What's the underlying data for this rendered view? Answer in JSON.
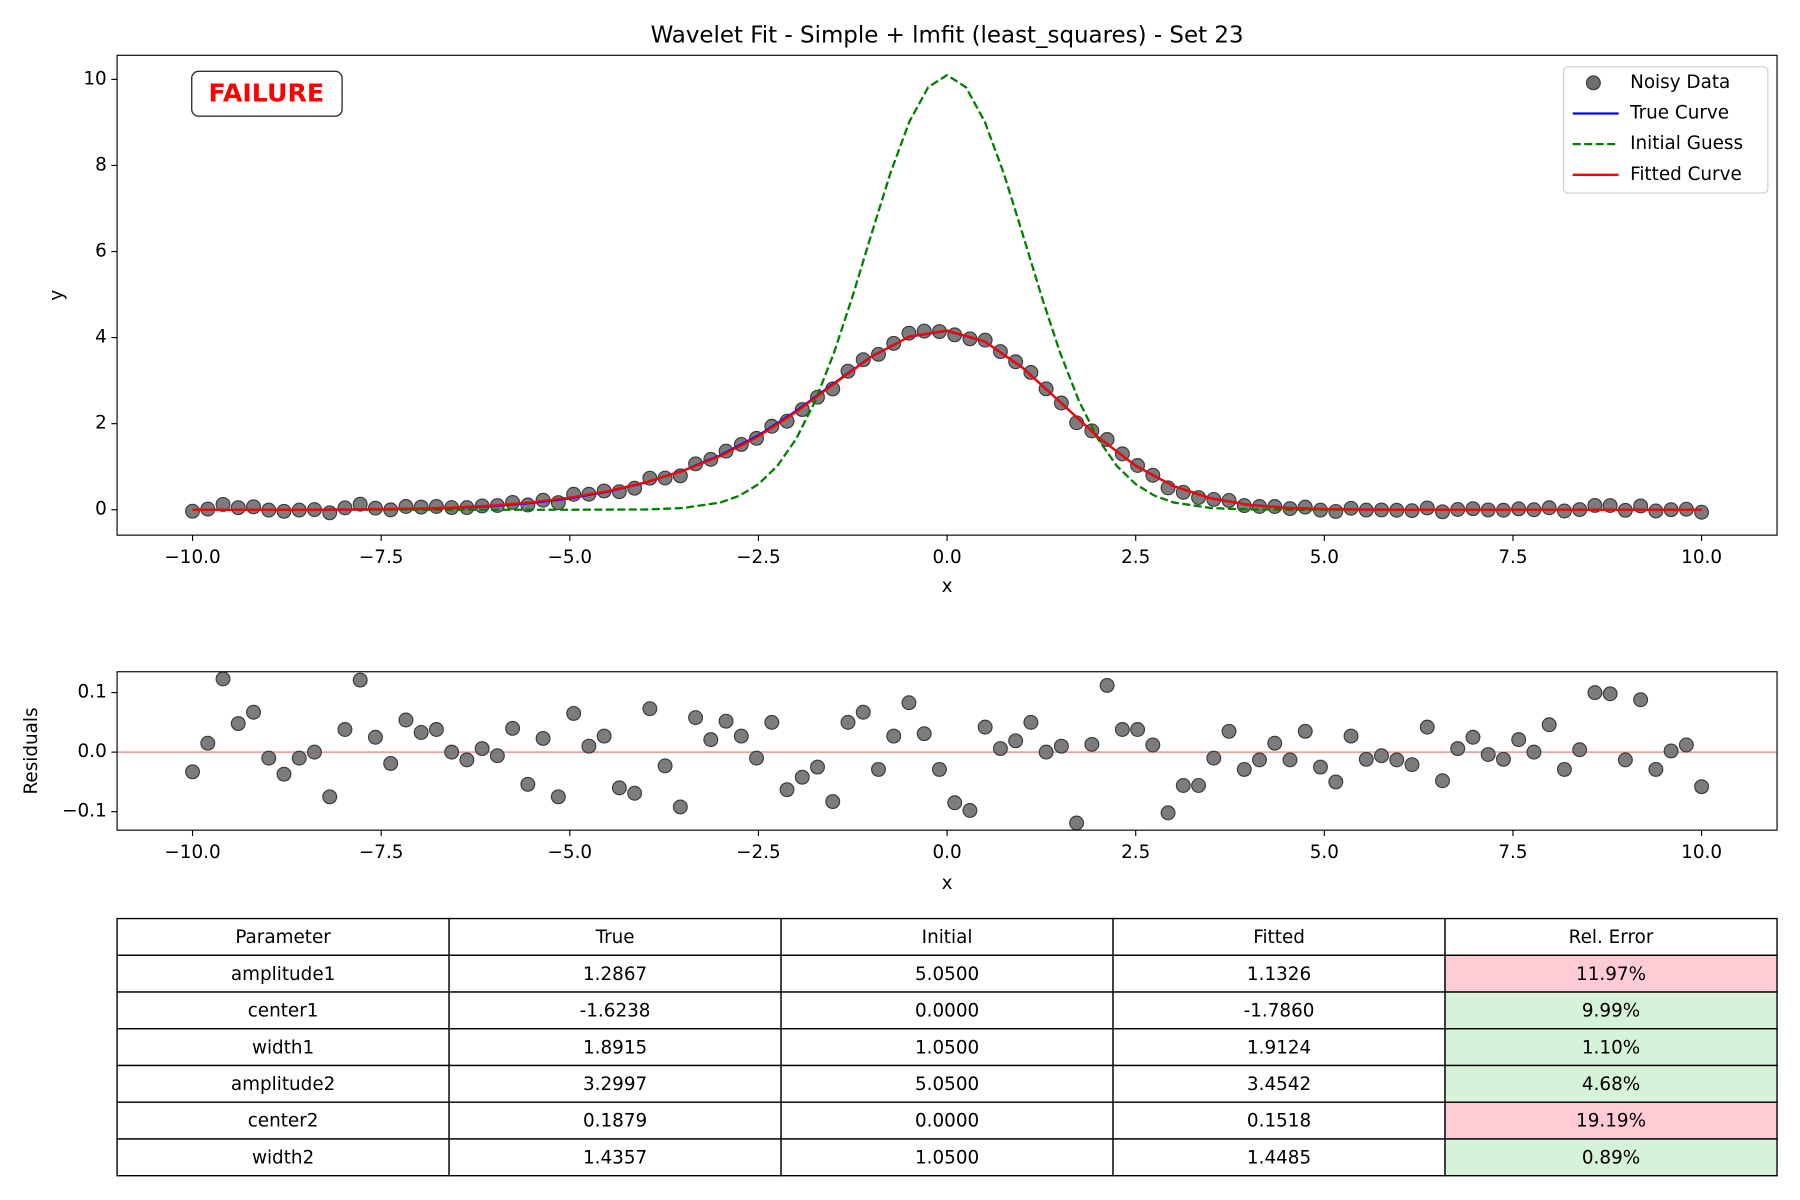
{
  "chart_data": [
    {
      "type": "line",
      "title": "Wavelet Fit - Simple + lmfit (least_squares) - Set 23",
      "xlabel": "x",
      "ylabel": "y",
      "xlim": [
        -11,
        11
      ],
      "ylim": [
        -0.59,
        10.56
      ],
      "xticks": [
        {
          "value": -10,
          "label": "−10.0"
        },
        {
          "value": -7.5,
          "label": "−7.5"
        },
        {
          "value": -5,
          "label": "−5.0"
        },
        {
          "value": -2.5,
          "label": "−2.5"
        },
        {
          "value": 0,
          "label": "0.0"
        },
        2.5,
        {
          "value": 5,
          "label": "5.0"
        },
        7.5,
        {
          "value": 10,
          "label": "10.0"
        }
      ],
      "yticks": [
        0,
        2,
        4,
        6,
        8,
        10
      ],
      "annotation": "FAILURE",
      "annotation_color": "#ff0000",
      "legend": "upper right",
      "series": [
        {
          "name": "Noisy Data",
          "style": "markers",
          "color": "#6e6e6e",
          "x": [
            -10,
            -9.798,
            -9.596,
            -9.394,
            -9.192,
            -8.99,
            -8.788,
            -8.586,
            -8.384,
            -8.182,
            -7.98,
            -7.778,
            -7.576,
            -7.374,
            -7.172,
            -6.97,
            -6.768,
            -6.566,
            -6.364,
            -6.162,
            -5.96,
            -5.758,
            -5.556,
            -5.354,
            -5.152,
            -4.949,
            -4.747,
            -4.545,
            -4.343,
            -4.141,
            -3.939,
            -3.737,
            -3.535,
            -3.333,
            -3.131,
            -2.929,
            -2.727,
            -2.525,
            -2.323,
            -2.121,
            -1.919,
            -1.717,
            -1.515,
            -1.313,
            -1.111,
            -0.909,
            -0.707,
            -0.505,
            -0.303,
            -0.101,
            0.101,
            0.303,
            0.505,
            0.707,
            0.909,
            1.111,
            1.313,
            1.515,
            1.717,
            1.919,
            2.121,
            2.323,
            2.525,
            2.727,
            2.929,
            3.131,
            3.333,
            3.535,
            3.737,
            3.939,
            4.141,
            4.343,
            4.545,
            4.747,
            4.949,
            5.152,
            5.354,
            5.556,
            5.758,
            5.96,
            6.162,
            6.364,
            6.566,
            6.768,
            6.97,
            7.172,
            7.374,
            7.576,
            7.778,
            7.98,
            8.182,
            8.384,
            8.586,
            8.788,
            8.99,
            9.192,
            9.394,
            9.596,
            9.798,
            10
          ],
          "values": [
            -0.033,
            0.015,
            0.123,
            0.048,
            0.068,
            -0.009,
            -0.036,
            -0.008,
            0.003,
            -0.071,
            0.044,
            0.129,
            0.037,
            -0.003,
            0.075,
            0.062,
            0.076,
            0.05,
            0.05,
            0.088,
            0.098,
            0.17,
            0.11,
            0.221,
            0.165,
            0.36,
            0.36,
            0.437,
            0.42,
            0.501,
            0.733,
            0.737,
            0.788,
            1.068,
            1.171,
            1.362,
            1.517,
            1.66,
            1.94,
            2.057,
            2.328,
            2.615,
            2.807,
            3.22,
            3.487,
            3.611,
            3.867,
            4.103,
            4.151,
            4.141,
            4.065,
            3.972,
            3.942,
            3.676,
            3.439,
            3.19,
            2.81,
            2.48,
            2.021,
            1.833,
            1.632,
            1.298,
            1.028,
            0.802,
            0.508,
            0.404,
            0.284,
            0.24,
            0.215,
            0.096,
            0.075,
            0.075,
            0.027,
            0.061,
            -0.009,
            -0.039,
            0.034,
            -0.008,
            -0.004,
            -0.012,
            -0.021,
            0.042,
            -0.048,
            0.006,
            0.025,
            -0.004,
            -0.012,
            0.021,
            0,
            0.046,
            -0.029,
            0.004,
            0.1,
            0.098,
            -0.013,
            0.088,
            -0.029,
            0.002,
            0.012,
            -0.058
          ]
        },
        {
          "name": "True Curve",
          "style": "solid",
          "color": "#0000ff",
          "x": [
            -10,
            -9.5,
            -9,
            -8.5,
            -8,
            -7.5,
            -7,
            -6.5,
            -6,
            -5.5,
            -5,
            -4.5,
            -4,
            -3.5,
            -3,
            -2.5,
            -2,
            -1.5,
            -1,
            -0.5,
            0,
            0.5,
            1,
            1.5,
            2,
            2.5,
            3,
            3.5,
            4,
            4.5,
            5,
            5.5,
            6,
            6.5,
            7,
            7.5,
            8,
            8.5,
            9,
            9.5,
            10
          ],
          "values": [
            0,
            0,
            0.001,
            0.002,
            0.004,
            0.01,
            0.023,
            0.046,
            0.089,
            0.159,
            0.266,
            0.421,
            0.631,
            0.909,
            1.268,
            1.728,
            2.294,
            2.937,
            3.562,
            4.02,
            4.162,
            3.908,
            3.303,
            2.502,
            1.693,
            1.022,
            0.55,
            0.263,
            0.113,
            0.043,
            0.015,
            0.005,
            0.001,
            0,
            0,
            0,
            0,
            0,
            0,
            0,
            0
          ]
        },
        {
          "name": "Initial Guess",
          "style": "dashed",
          "color": "#008000",
          "x": [
            -10,
            -5,
            -4,
            -3.5,
            -3,
            -2.75,
            -2.5,
            -2.25,
            -2,
            -1.75,
            -1.5,
            -1.25,
            -1,
            -0.75,
            -0.5,
            -0.25,
            0,
            0.25,
            0.5,
            0.75,
            1,
            1.25,
            1.5,
            1.75,
            2,
            2.25,
            2.5,
            2.75,
            3,
            3.5,
            4,
            5,
            10
          ],
          "values": [
            0,
            0,
            0.007,
            0.039,
            0.17,
            0.327,
            0.594,
            1.017,
            1.646,
            2.519,
            3.64,
            4.972,
            6.417,
            7.825,
            9.017,
            9.818,
            10.1,
            9.818,
            9.017,
            7.825,
            6.417,
            4.972,
            3.64,
            2.519,
            1.646,
            1.017,
            0.594,
            0.327,
            0.17,
            0.039,
            0.007,
            0,
            0
          ]
        },
        {
          "name": "Fitted Curve",
          "style": "solid",
          "color": "#ff0000",
          "x": [
            -10,
            -9.5,
            -9,
            -8.5,
            -8,
            -7.5,
            -7,
            -6.5,
            -6,
            -5.5,
            -5,
            -4.5,
            -4,
            -3.5,
            -3,
            -2.5,
            -2,
            -1.5,
            -1,
            -0.5,
            0,
            0.5,
            1,
            1.5,
            2,
            2.5,
            3,
            3.5,
            4,
            4.5,
            5,
            5.5,
            6,
            6.5,
            7,
            7.5,
            8,
            8.5,
            9,
            9.5,
            10
          ],
          "values": [
            0,
            0,
            0.001,
            0.002,
            0.006,
            0.013,
            0.028,
            0.054,
            0.1,
            0.174,
            0.282,
            0.434,
            0.636,
            0.902,
            1.25,
            1.703,
            2.271,
            2.922,
            3.558,
            4.025,
            4.168,
            3.911,
            3.302,
            2.499,
            1.69,
            1.021,
            0.549,
            0.264,
            0.113,
            0.043,
            0.015,
            0.005,
            0.001,
            0,
            0,
            0,
            0,
            0,
            0,
            0,
            0
          ]
        }
      ]
    },
    {
      "type": "scatter",
      "xlabel": "x",
      "ylabel": "Residuals",
      "xlim": [
        -11,
        11
      ],
      "ylim": [
        -0.131,
        0.135
      ],
      "xticks": [
        {
          "value": -10,
          "label": "−10.0"
        },
        {
          "value": -7.5,
          "label": "−7.5"
        },
        {
          "value": -5,
          "label": "−5.0"
        },
        {
          "value": -2.5,
          "label": "−2.5"
        },
        {
          "value": 0,
          "label": "0.0"
        },
        2.5,
        {
          "value": 5,
          "label": "5.0"
        },
        7.5,
        {
          "value": 10,
          "label": "10.0"
        }
      ],
      "yticks": [
        {
          "value": -0.1,
          "label": "−0.1"
        },
        {
          "value": 0,
          "label": "0.0"
        },
        0.1
      ],
      "hline": {
        "y": 0,
        "color": "#f4a0a0"
      },
      "color": "#6e6e6e",
      "x": [
        -10,
        -9.798,
        -9.596,
        -9.394,
        -9.192,
        -8.99,
        -8.788,
        -8.586,
        -8.384,
        -8.182,
        -7.98,
        -7.778,
        -7.576,
        -7.374,
        -7.172,
        -6.97,
        -6.768,
        -6.566,
        -6.364,
        -6.162,
        -5.96,
        -5.758,
        -5.556,
        -5.354,
        -5.152,
        -4.949,
        -4.747,
        -4.545,
        -4.343,
        -4.141,
        -3.939,
        -3.737,
        -3.535,
        -3.333,
        -3.131,
        -2.929,
        -2.727,
        -2.525,
        -2.323,
        -2.121,
        -1.919,
        -1.717,
        -1.515,
        -1.313,
        -1.111,
        -0.909,
        -0.707,
        -0.505,
        -0.303,
        -0.101,
        0.101,
        0.303,
        0.505,
        0.707,
        0.909,
        1.111,
        1.313,
        1.515,
        1.717,
        1.919,
        2.121,
        2.323,
        2.525,
        2.727,
        2.929,
        3.131,
        3.333,
        3.535,
        3.737,
        3.939,
        4.141,
        4.343,
        4.545,
        4.747,
        4.949,
        5.152,
        5.354,
        5.556,
        5.758,
        5.96,
        6.162,
        6.364,
        6.566,
        6.768,
        6.97,
        7.172,
        7.374,
        7.576,
        7.778,
        7.98,
        8.182,
        8.384,
        8.586,
        8.788,
        8.99,
        9.192,
        9.394,
        9.596,
        9.798,
        10
      ],
      "values": [
        -0.033,
        0.015,
        0.123,
        0.048,
        0.067,
        -0.01,
        -0.037,
        -0.01,
        0,
        -0.075,
        0.038,
        0.121,
        0.025,
        -0.019,
        0.054,
        0.033,
        0.038,
        0,
        -0.013,
        0.006,
        -0.006,
        0.04,
        -0.054,
        0.023,
        -0.075,
        0.065,
        0.01,
        0.027,
        -0.06,
        -0.069,
        0.073,
        -0.023,
        -0.092,
        0.058,
        0.021,
        0.052,
        0.027,
        -0.01,
        0.05,
        -0.063,
        -0.042,
        -0.025,
        -0.083,
        0.05,
        0.067,
        -0.029,
        0.027,
        0.083,
        0.031,
        -0.029,
        -0.085,
        -0.098,
        0.042,
        0.006,
        0.019,
        0.05,
        0,
        0.01,
        -0.119,
        0.013,
        0.112,
        0.038,
        0.038,
        0.012,
        -0.102,
        -0.056,
        -0.056,
        -0.01,
        0.035,
        -0.029,
        -0.013,
        0.015,
        -0.013,
        0.035,
        -0.025,
        -0.05,
        0.027,
        -0.012,
        -0.006,
        -0.013,
        -0.021,
        0.042,
        -0.048,
        0.006,
        0.025,
        -0.004,
        -0.012,
        0.021,
        0,
        0.046,
        -0.029,
        0.004,
        0.1,
        0.098,
        -0.013,
        0.088,
        -0.029,
        0.002,
        0.012,
        -0.058
      ]
    }
  ],
  "table": {
    "columns": [
      "Parameter",
      "True",
      "Initial",
      "Fitted",
      "Rel. Error"
    ],
    "rows": [
      [
        "amplitude1",
        "1.2867",
        "5.0500",
        "1.1326",
        "11.97%"
      ],
      [
        "center1",
        "-1.6238",
        "0.0000",
        "-1.7860",
        "9.99%"
      ],
      [
        "width1",
        "1.8915",
        "1.0500",
        "1.9124",
        "1.10%"
      ],
      [
        "amplitude2",
        "3.2997",
        "5.0500",
        "3.4542",
        "4.68%"
      ],
      [
        "center2",
        "0.1879",
        "0.0000",
        "0.1518",
        "19.19%"
      ],
      [
        "width2",
        "1.4357",
        "1.0500",
        "1.4485",
        "0.89%"
      ]
    ],
    "error_cell_colors": [
      "#ffccd5",
      "#d6f2d8",
      "#d6f2d8",
      "#d6f2d8",
      "#ffccd5",
      "#d6f2d8"
    ]
  }
}
